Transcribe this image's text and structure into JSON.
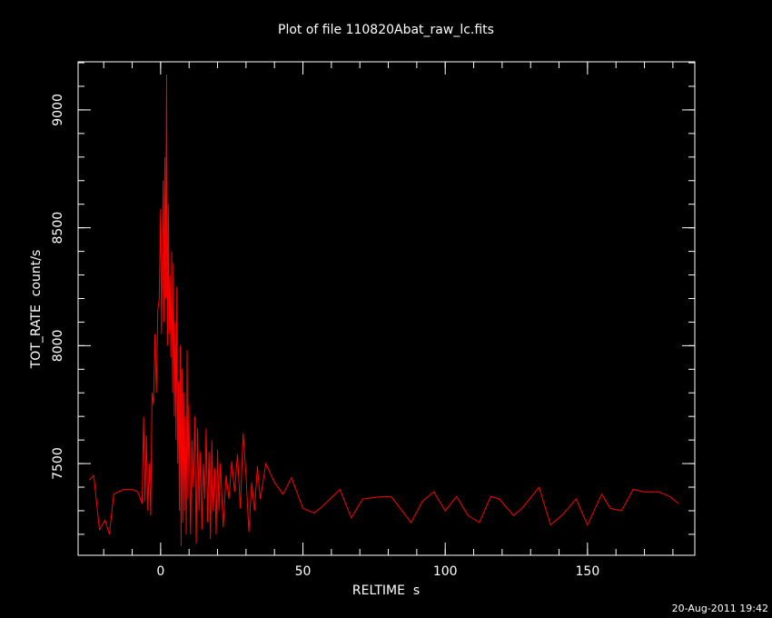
{
  "chart_data": {
    "type": "line",
    "title": "Plot of file 110820Abat_raw_lc.fits",
    "x_label": "RELTIME  s",
    "y_label": "TOT_RATE  count/s",
    "footer": "20-Aug-2011 19:42",
    "color": "#ff0000",
    "xlim": [
      -29,
      187.7
    ],
    "ylim": [
      7111,
      9204
    ],
    "xticks": [
      0,
      50,
      100,
      150
    ],
    "yticks": [
      7500,
      8000,
      8500,
      9000
    ],
    "x_minor_step": 10,
    "y_minor_step": 100,
    "x": [
      -25,
      -23.5,
      -21.5,
      -19.5,
      -18,
      -16.5,
      -13,
      -10,
      -8,
      -6.5,
      -6,
      -5.5,
      -5,
      -4.5,
      -4,
      -3.5,
      -3,
      -2.5,
      -2,
      -1.5,
      -1,
      -0.5,
      0,
      0.3,
      0.6,
      0.9,
      1.2,
      1.5,
      1.8,
      2.1,
      2.4,
      2.7,
      3,
      3.3,
      3.6,
      3.9,
      4.2,
      4.5,
      4.8,
      5.1,
      5.4,
      5.7,
      6,
      6.3,
      6.6,
      6.9,
      7.2,
      7.5,
      7.8,
      8.1,
      8.4,
      8.7,
      9,
      9.3,
      9.6,
      9.9,
      10.5,
      11,
      11.5,
      12,
      12.5,
      13,
      13.5,
      14,
      14.5,
      15,
      15.5,
      16,
      16.5,
      17,
      17.5,
      18,
      18.5,
      19,
      19.5,
      20,
      20.5,
      21,
      22,
      23,
      24,
      25,
      26,
      27,
      28,
      29,
      30,
      31,
      32,
      33,
      34,
      35,
      37,
      40,
      43,
      46,
      50,
      54,
      57,
      63,
      67,
      71,
      78,
      81,
      88,
      92,
      96,
      100,
      104,
      108,
      112,
      116,
      119,
      124,
      127,
      133,
      137,
      141,
      146,
      150,
      155,
      158,
      162,
      166,
      170,
      175,
      179,
      182
    ],
    "values": [
      7430,
      7450,
      7220,
      7260,
      7200,
      7370,
      7390,
      7390,
      7380,
      7330,
      7700,
      7340,
      7620,
      7300,
      7500,
      7280,
      7800,
      7750,
      8050,
      7800,
      8150,
      8200,
      8580,
      8050,
      8400,
      8700,
      8100,
      8800,
      8200,
      9150,
      8000,
      8600,
      8050,
      8300,
      7950,
      8400,
      7800,
      8350,
      7700,
      8100,
      7600,
      8250,
      7500,
      7850,
      7300,
      8000,
      7150,
      7900,
      7250,
      7800,
      7300,
      7700,
      7200,
      7980,
      7350,
      7750,
      7200,
      7600,
      7400,
      7700,
      7160,
      7650,
      7300,
      7550,
      7220,
      7500,
      7350,
      7650,
      7250,
      7550,
      7180,
      7600,
      7300,
      7480,
      7200,
      7560,
      7300,
      7500,
      7230,
      7450,
      7350,
      7510,
      7380,
      7540,
      7310,
      7630,
      7450,
      7210,
      7420,
      7300,
      7490,
      7350,
      7500,
      7420,
      7370,
      7440,
      7310,
      7290,
      7320,
      7390,
      7270,
      7350,
      7360,
      7360,
      7250,
      7340,
      7380,
      7300,
      7360,
      7280,
      7250,
      7360,
      7350,
      7280,
      7310,
      7400,
      7240,
      7280,
      7350,
      7240,
      7370,
      7310,
      7300,
      7390,
      7380,
      7380,
      7360,
      7330
    ]
  }
}
